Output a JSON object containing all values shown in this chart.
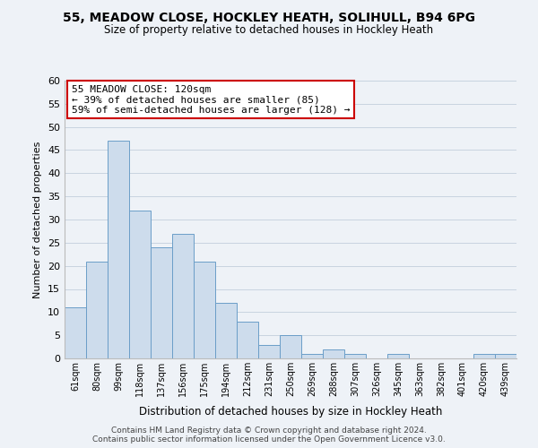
{
  "title": "55, MEADOW CLOSE, HOCKLEY HEATH, SOLIHULL, B94 6PG",
  "subtitle": "Size of property relative to detached houses in Hockley Heath",
  "xlabel": "Distribution of detached houses by size in Hockley Heath",
  "ylabel": "Number of detached properties",
  "bin_labels": [
    "61sqm",
    "80sqm",
    "99sqm",
    "118sqm",
    "137sqm",
    "156sqm",
    "175sqm",
    "194sqm",
    "212sqm",
    "231sqm",
    "250sqm",
    "269sqm",
    "288sqm",
    "307sqm",
    "326sqm",
    "345sqm",
    "363sqm",
    "382sqm",
    "401sqm",
    "420sqm",
    "439sqm"
  ],
  "bar_heights": [
    11,
    21,
    47,
    32,
    24,
    27,
    21,
    12,
    8,
    3,
    5,
    1,
    2,
    1,
    0,
    1,
    0,
    0,
    0,
    1,
    1
  ],
  "bar_color": "#cddcec",
  "bar_edge_color": "#6b9ec8",
  "ylim": [
    0,
    60
  ],
  "yticks": [
    0,
    5,
    10,
    15,
    20,
    25,
    30,
    35,
    40,
    45,
    50,
    55,
    60
  ],
  "grid_color": "#c8d4e0",
  "bg_color": "#eef2f7",
  "annotation_line1": "55 MEADOW CLOSE: 120sqm",
  "annotation_line2": "← 39% of detached houses are smaller (85)",
  "annotation_line3": "59% of semi-detached houses are larger (128) →",
  "annotation_box_color": "white",
  "annotation_border_color": "#cc0000",
  "footer_line1": "Contains HM Land Registry data © Crown copyright and database right 2024.",
  "footer_line2": "Contains public sector information licensed under the Open Government Licence v3.0."
}
